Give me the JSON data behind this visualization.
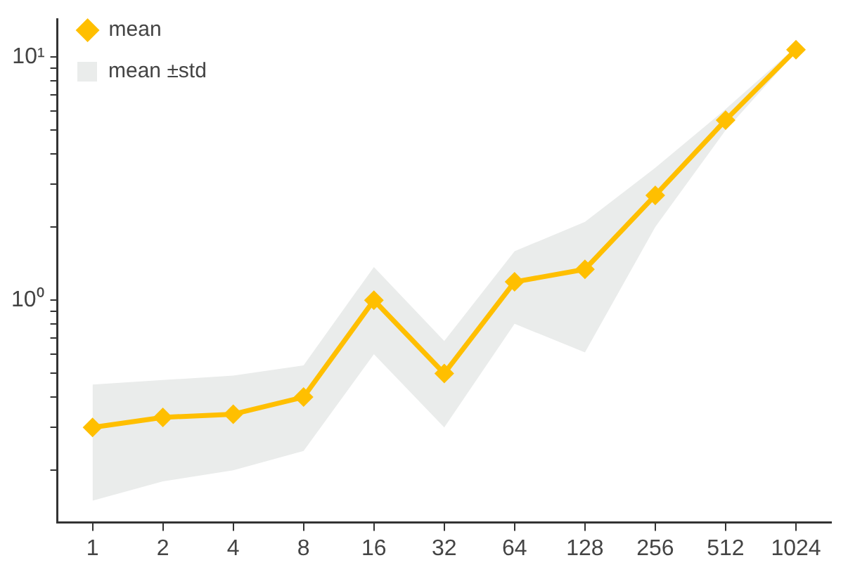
{
  "chart_data": {
    "type": "line",
    "categories": [
      "1",
      "2",
      "4",
      "8",
      "16",
      "32",
      "64",
      "128",
      "256",
      "512",
      "1024"
    ],
    "series": [
      {
        "name": "mean",
        "color": "#ffbf00",
        "values": [
          0.3,
          0.33,
          0.34,
          0.4,
          1.0,
          0.5,
          1.19,
          1.34,
          2.7,
          5.5,
          10.7
        ],
        "lower": [
          0.15,
          0.18,
          0.2,
          0.24,
          0.6,
          0.3,
          0.8,
          0.61,
          2.0,
          5.0,
          10.5
        ],
        "upper": [
          0.45,
          0.47,
          0.49,
          0.54,
          1.37,
          0.68,
          1.59,
          2.1,
          3.5,
          6.1,
          11.0
        ]
      }
    ],
    "annotations": [
      "mean ±std"
    ],
    "log": "y",
    "ylim": [
      0.122,
      14.3
    ],
    "yticks": [
      {
        "value": 0.2,
        "label": null
      },
      {
        "value": 0.3,
        "label": null
      },
      {
        "value": 0.4,
        "label": null
      },
      {
        "value": 0.5,
        "label": null
      },
      {
        "value": 0.6,
        "label": null
      },
      {
        "value": 0.7,
        "label": null
      },
      {
        "value": 0.8,
        "label": null
      },
      {
        "value": 0.9,
        "label": null
      },
      {
        "value": 1,
        "label": "10⁰"
      },
      {
        "value": 2,
        "label": null
      },
      {
        "value": 3,
        "label": null
      },
      {
        "value": 4,
        "label": null
      },
      {
        "value": 5,
        "label": null
      },
      {
        "value": 6,
        "label": null
      },
      {
        "value": 7,
        "label": null
      },
      {
        "value": 8,
        "label": null
      },
      {
        "value": 9,
        "label": null
      },
      {
        "value": 10,
        "label": "10¹"
      }
    ],
    "grid": false,
    "legend": "top left",
    "marker": "diamond",
    "line_style": "solid"
  }
}
